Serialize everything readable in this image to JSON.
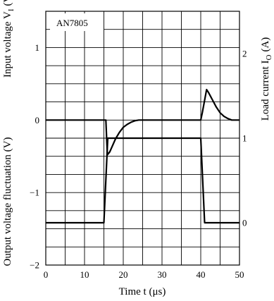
{
  "chart_data": {
    "type": "line",
    "annotation": "AN7805",
    "xlabel": "Time  t  (μs)",
    "x_ticks": [
      "0",
      "10",
      "20",
      "30",
      "40",
      "50"
    ],
    "xlim": [
      0,
      50
    ],
    "left_axis": {
      "label_top": "Input voltage  V",
      "label_top_subscript": "I",
      "label_top_unit": "(V)",
      "label_bottom": "Output voltage fluctuation  (V)",
      "ticks": [
        "1",
        "0",
        "−1",
        "−2"
      ],
      "ylim": [
        -2,
        1.5
      ]
    },
    "right_axis": {
      "label": "Load current  I",
      "label_subscript": "O",
      "label_unit": "(A)",
      "ticks": [
        "2",
        "1",
        "0"
      ],
      "ylim": [
        -0.5,
        2.5
      ]
    },
    "grid": true,
    "series": [
      {
        "axis": "right",
        "x": [
          0,
          15,
          16,
          40,
          41,
          50
        ],
        "y": [
          0,
          0,
          1,
          1,
          0,
          0
        ]
      },
      {
        "axis": "left",
        "x": [
          0,
          15.5,
          15.9,
          16.5,
          17,
          18,
          19,
          20,
          21,
          22,
          23,
          24,
          40,
          40.4,
          41.5,
          42,
          43,
          44,
          45,
          46,
          47,
          48,
          50
        ],
        "y": [
          0,
          0,
          -0.48,
          -0.44,
          -0.38,
          -0.26,
          -0.17,
          -0.1,
          -0.06,
          -0.03,
          -0.01,
          0,
          0,
          0.1,
          0.42,
          0.38,
          0.28,
          0.18,
          0.1,
          0.05,
          0.02,
          0,
          0
        ]
      }
    ]
  }
}
